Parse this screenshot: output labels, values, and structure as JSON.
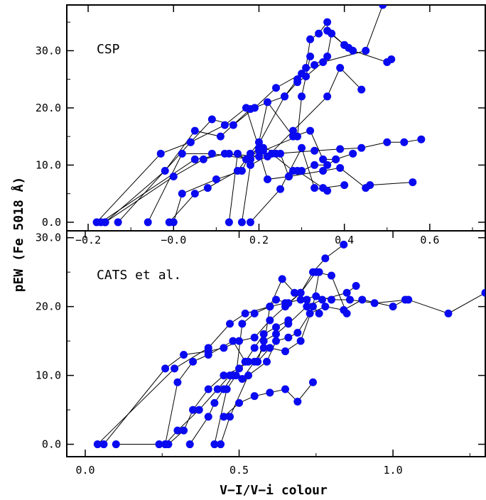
{
  "colors": {
    "marker": "#0a0af0",
    "line": "#000000",
    "axes": "#000000",
    "background": "#ffffff"
  },
  "ylabel": "pEW (Fe 5018 Å)",
  "xlabel": "V−I/V−i colour",
  "chart_data": [
    {
      "type": "scatter",
      "panel_label": "CSP",
      "xlim": [
        -0.25,
        0.73
      ],
      "ylim": [
        -1.5,
        38
      ],
      "xticks": [
        -0.2,
        0.0,
        0.2,
        0.4,
        0.6
      ],
      "xtick_labels": [
        "−0.2",
        "−0.0",
        "0.2",
        "0.4",
        "0.6"
      ],
      "yticks": [
        0,
        10,
        20,
        30
      ],
      "ytick_labels": [
        "0.0",
        "10.0",
        "20.0",
        "30.0"
      ],
      "series": [
        {
          "x": [
            -0.18,
            -0.03,
            0.04,
            0.09,
            0.14,
            0.19,
            0.24,
            0.3,
            0.33,
            0.36,
            0.37,
            0.4,
            0.42,
            0.5,
            0.51
          ],
          "y": [
            0,
            12,
            14,
            18,
            17,
            20,
            23.5,
            26,
            27.5,
            29,
            33,
            31,
            30,
            28,
            28.5
          ]
        },
        {
          "x": [
            -0.16,
            -0.02,
            0.05,
            0.11,
            0.18,
            0.26,
            0.29,
            0.31,
            0.32,
            0.34,
            0.36,
            0.36,
            0.4,
            0.41
          ],
          "y": [
            0,
            9,
            16,
            15,
            19.8,
            22,
            25,
            27,
            32,
            33,
            35,
            33.5,
            31,
            30.5
          ]
        },
        {
          "x": [
            -0.17,
            0.05,
            0.13,
            0.18,
            0.26,
            0.29,
            0.31,
            0.35,
            0.45,
            0.49
          ],
          "y": [
            0,
            11,
            12,
            11,
            22,
            24.5,
            25.5,
            28,
            30,
            38
          ]
        },
        {
          "x": [
            -0.16,
            0.0,
            0.07,
            0.12,
            0.2,
            0.24,
            0.33,
            0.39,
            0.44,
            0.5,
            0.54,
            0.58
          ],
          "y": [
            0,
            8,
            11,
            12,
            11.5,
            12,
            12.5,
            12.8,
            13,
            14,
            14,
            14.5
          ]
        },
        {
          "x": [
            -0.13,
            0.04,
            0.12,
            0.17,
            0.2,
            0.22,
            0.28,
            0.36,
            0.39,
            0.44
          ],
          "y": [
            0,
            14,
            17,
            20,
            13,
            11.5,
            16,
            22,
            27,
            23.2
          ]
        },
        {
          "x": [
            -0.06,
            0.02,
            0.09,
            0.18,
            0.21,
            0.29,
            0.3,
            0.32
          ],
          "y": [
            0,
            12,
            12,
            11,
            12.5,
            15,
            22,
            29
          ]
        },
        {
          "x": [
            -0.01,
            0.05,
            0.08,
            0.15,
            0.2,
            0.22,
            0.28,
            0.32,
            0.35,
            0.38
          ],
          "y": [
            0,
            5,
            6,
            9,
            14,
            21,
            15,
            16,
            11,
            11
          ]
        },
        {
          "x": [
            0.0,
            0.02,
            0.1,
            0.16,
            0.18,
            0.21,
            0.25,
            0.27,
            0.29,
            0.35,
            0.4
          ],
          "y": [
            0,
            5,
            7.5,
            9,
            12,
            13,
            12,
            8,
            9,
            6,
            6.5
          ]
        },
        {
          "x": [
            0.13,
            0.15,
            0.17,
            0.2,
            0.22,
            0.27,
            0.35,
            0.39,
            0.45,
            0.46,
            0.56
          ],
          "y": [
            0,
            12,
            11,
            12.5,
            7.5,
            8,
            9,
            9.5,
            6,
            6.5,
            7
          ]
        },
        {
          "x": [
            0.16,
            0.18,
            0.23,
            0.28,
            0.3,
            0.33,
            0.36,
            0.38,
            0.42
          ],
          "y": [
            0,
            10,
            12,
            9,
            9,
            10,
            10,
            11,
            12
          ]
        },
        {
          "x": [
            0.18,
            0.25,
            0.3,
            0.33,
            0.36
          ],
          "y": [
            0,
            5.8,
            13,
            6,
            5.5
          ]
        }
      ]
    },
    {
      "type": "scatter",
      "panel_label": "CATS et al.",
      "xlim": [
        -0.06,
        1.3
      ],
      "ylim": [
        -1.8,
        31
      ],
      "xticks": [
        0.0,
        0.5,
        1.0
      ],
      "xtick_labels": [
        "0.0",
        "0.5",
        "1.0"
      ],
      "yticks": [
        0,
        10,
        20,
        30
      ],
      "ytick_labels": [
        "0.0",
        "10.0",
        "20.0",
        "30.0"
      ],
      "series": [
        {
          "x": [
            0.04,
            0.29,
            0.4,
            0.47,
            0.52,
            0.6,
            0.62,
            0.66,
            0.7,
            0.75,
            0.8,
            0.85
          ],
          "y": [
            0,
            11,
            14,
            17.5,
            19,
            20,
            21,
            20.5,
            22,
            25,
            24.5,
            19
          ]
        },
        {
          "x": [
            0.06,
            0.26,
            0.32,
            0.4,
            0.45,
            0.5,
            0.55,
            0.6,
            0.65,
            0.7,
            0.74,
            0.78,
            0.84
          ],
          "y": [
            0,
            11,
            13,
            13.5,
            14,
            15,
            15.5,
            18,
            20,
            22,
            25,
            27,
            29
          ]
        },
        {
          "x": [
            0.1,
            0.26,
            0.3,
            0.35,
            0.4,
            0.48,
            0.52,
            0.56,
            0.58,
            0.62,
            0.66,
            0.72,
            0.77,
            0.85,
            0.88
          ],
          "y": [
            0,
            0,
            9,
            12,
            13,
            15,
            12,
            12,
            15,
            16,
            17.5,
            20,
            21,
            22,
            23
          ]
        },
        {
          "x": [
            0.24,
            0.26,
            0.3,
            0.37,
            0.43,
            0.47,
            0.51,
            0.55,
            0.58,
            0.6,
            0.64,
            0.68,
            0.72,
            0.76
          ],
          "y": [
            0,
            0,
            2,
            5,
            8,
            10,
            9.5,
            12,
            14,
            20,
            24,
            22,
            21,
            19
          ]
        },
        {
          "x": [
            0.27,
            0.32,
            0.35,
            0.4,
            0.45,
            0.5,
            0.53,
            0.56,
            0.6,
            0.65,
            0.7,
            0.74,
            0.76
          ],
          "y": [
            0,
            2,
            5,
            8,
            10,
            11,
            12,
            12,
            14,
            13.5,
            15,
            20,
            25
          ]
        },
        {
          "x": [
            0.34,
            0.4,
            0.42,
            0.45,
            0.48,
            0.52,
            0.55,
            0.58,
            0.62,
            0.66
          ],
          "y": [
            0,
            4,
            6,
            8,
            10,
            12,
            14,
            16,
            17,
            18
          ]
        },
        {
          "x": [
            0.42,
            0.46,
            0.49,
            0.51,
            0.55,
            0.6,
            0.65,
            0.7,
            0.75,
            0.8,
            0.86,
            0.94,
            1.05,
            1.18,
            1.3
          ],
          "y": [
            0,
            8,
            10,
            17.5,
            19,
            20,
            20.5,
            21,
            21.5,
            21,
            21,
            20.5,
            21,
            19,
            22
          ]
        },
        {
          "x": [
            0.45,
            0.5,
            0.55,
            0.6,
            0.65,
            0.69,
            0.74
          ],
          "y": [
            4,
            6,
            7,
            7.5,
            8,
            6.2,
            9
          ]
        },
        {
          "x": [
            0.44,
            0.47,
            0.53,
            0.59,
            0.62,
            0.66,
            0.69,
            0.73,
            0.78,
            0.84,
            0.9,
            1.0,
            1.04
          ],
          "y": [
            0,
            4,
            10,
            12,
            15,
            15.5,
            16.2,
            19,
            20,
            19.5,
            21,
            20,
            21
          ]
        }
      ]
    }
  ]
}
